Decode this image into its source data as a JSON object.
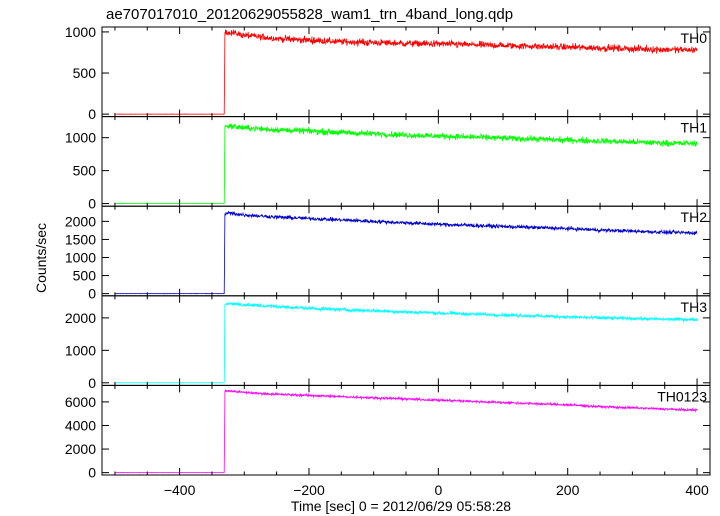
{
  "chart_data": {
    "type": "line",
    "title": "ae707017010_20120629055828_wam1_trn_4band_long.qdp",
    "xlabel": "Time [sec] 0 = 2012/06/29 05:58:28",
    "ylabel": "Counts/sec",
    "xlim": [
      -520,
      420
    ],
    "xticks": [
      -400,
      -200,
      0,
      200,
      400
    ],
    "grid": false,
    "panels": [
      {
        "name": "TH0",
        "color": "#ff0000",
        "ylim": [
          -30,
          1060
        ],
        "yticks": [
          0,
          500,
          1000
        ],
        "x": [
          -500,
          -331,
          -330,
          -325,
          -300,
          -250,
          -200,
          -150,
          -100,
          -50,
          0,
          50,
          100,
          150,
          200,
          250,
          300,
          350,
          400
        ],
        "y": [
          0,
          0,
          990,
          1000,
          960,
          920,
          900,
          880,
          870,
          860,
          855,
          845,
          835,
          825,
          815,
          805,
          795,
          785,
          780
        ],
        "noise": 45
      },
      {
        "name": "TH1",
        "color": "#00ff00",
        "ylim": [
          -40,
          1320
        ],
        "yticks": [
          0,
          500,
          1000
        ],
        "x": [
          -500,
          -331,
          -330,
          -325,
          -300,
          -250,
          -200,
          -150,
          -100,
          -50,
          0,
          50,
          100,
          150,
          200,
          250,
          300,
          350,
          400
        ],
        "y": [
          0,
          0,
          1170,
          1180,
          1150,
          1120,
          1100,
          1080,
          1060,
          1040,
          1025,
          1010,
          995,
          980,
          965,
          950,
          935,
          920,
          910
        ],
        "noise": 50
      },
      {
        "name": "TH2",
        "color": "#0000cc",
        "ylim": [
          -60,
          2420
        ],
        "yticks": [
          0,
          500,
          1000,
          1500,
          2000
        ],
        "x": [
          -500,
          -331,
          -330,
          -325,
          -300,
          -250,
          -200,
          -150,
          -100,
          -50,
          0,
          50,
          100,
          150,
          200,
          250,
          300,
          350,
          400
        ],
        "y": [
          0,
          0,
          2200,
          2230,
          2180,
          2120,
          2080,
          2040,
          2000,
          1960,
          1920,
          1890,
          1860,
          1830,
          1800,
          1760,
          1730,
          1700,
          1680
        ],
        "noise": 55
      },
      {
        "name": "TH3",
        "color": "#00ffff",
        "ylim": [
          -80,
          2680
        ],
        "yticks": [
          0,
          1000,
          2000
        ],
        "x": [
          -500,
          -331,
          -330,
          -325,
          -300,
          -250,
          -200,
          -150,
          -100,
          -50,
          0,
          50,
          100,
          150,
          200,
          250,
          300,
          350,
          400
        ],
        "y": [
          0,
          0,
          2400,
          2450,
          2400,
          2350,
          2300,
          2250,
          2220,
          2180,
          2150,
          2120,
          2090,
          2060,
          2030,
          2000,
          1980,
          1960,
          1950
        ],
        "noise": 60
      },
      {
        "name": "TH0123",
        "color": "#ff00ff",
        "ylim": [
          -200,
          7400
        ],
        "yticks": [
          0,
          2000,
          4000,
          6000
        ],
        "x": [
          -500,
          -331,
          -330,
          -325,
          -300,
          -250,
          -200,
          -150,
          -100,
          -50,
          0,
          50,
          100,
          150,
          200,
          250,
          300,
          350,
          400
        ],
        "y": [
          0,
          0,
          6900,
          6950,
          6800,
          6650,
          6550,
          6450,
          6350,
          6250,
          6150,
          6050,
          5950,
          5850,
          5750,
          5600,
          5500,
          5400,
          5300
        ],
        "noise": 110
      }
    ]
  }
}
